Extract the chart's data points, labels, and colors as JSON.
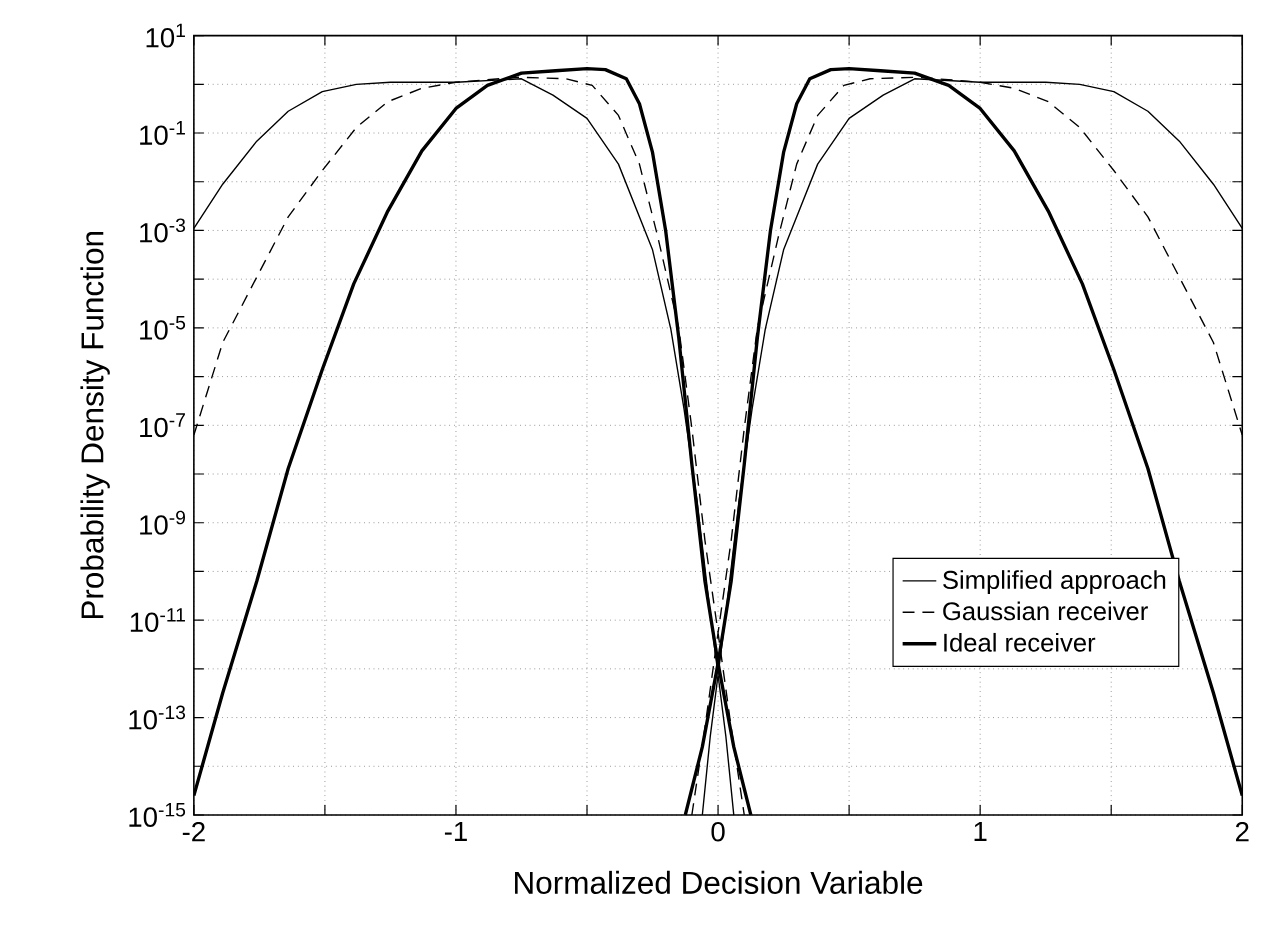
{
  "chart_data": {
    "type": "line",
    "xlabel": "Normalized Decision Variable",
    "ylabel": "Probability Density Function",
    "log": "y",
    "grid": true,
    "legend": "bottom right",
    "marker": "none",
    "xlim": [
      -2,
      2
    ],
    "xticks": [
      -2,
      {
        "value": -1.5,
        "label": null
      },
      -1,
      {
        "value": -0.5,
        "label": null
      },
      0,
      {
        "value": 0.5,
        "label": null
      },
      1,
      {
        "value": 1.5,
        "label": null
      },
      2
    ],
    "ylim": [
      1e-15,
      10
    ],
    "yticks": [
      {
        "value": 1e-15,
        "label": "10$^{-15}$"
      },
      {
        "value": 1e-14,
        "label": null
      },
      {
        "value": 1e-13,
        "label": "10$^{-13}$"
      },
      {
        "value": 1e-12,
        "label": null
      },
      {
        "value": 1e-11,
        "label": "10$^{-11}$"
      },
      {
        "value": 1e-10,
        "label": null
      },
      {
        "value": 1e-09,
        "label": "10$^{-9}$"
      },
      {
        "value": 1e-08,
        "label": null
      },
      {
        "value": 1e-07,
        "label": "10$^{-7}$"
      },
      {
        "value": 1e-06,
        "label": null
      },
      {
        "value": 1e-05,
        "label": "10$^{-5}$"
      },
      {
        "value": 0.0001,
        "label": null
      },
      {
        "value": 0.001,
        "label": "10$^{-3}$"
      },
      {
        "value": 0.01,
        "label": null
      },
      {
        "value": 0.1,
        "label": "10$^{-1}$"
      },
      {
        "value": 1,
        "label": null
      },
      {
        "value": 10,
        "label": "10$^{1}$"
      }
    ],
    "series": [
      {
        "name": "Simplified approach",
        "color": "#000000",
        "line_style": "solid",
        "x": [
          -2,
          -1.89,
          -1.76,
          -1.64,
          -1.51,
          -1.38,
          -1.25,
          -1.0,
          -0.75,
          -0.63,
          -0.5,
          -0.38,
          -0.25,
          -0.18,
          -0.13,
          -0.08,
          -0.03,
          0.03,
          0.06,
          0,
          -0.06,
          -0.03,
          0.03,
          0.08,
          0.13,
          0.18,
          0.25,
          0.38,
          0.5,
          0.63,
          0.75,
          1.0,
          1.25,
          1.38,
          1.51,
          1.64,
          1.76,
          1.89,
          2
        ],
        "values": [
          0.0011,
          0.0089,
          0.068,
          0.28,
          0.71,
          1.0,
          1.1,
          1.1,
          1.3,
          0.6,
          0.2,
          0.023,
          0.0004,
          9.3e-06,
          2.2e-07,
          2.8e-09,
          1.4e-11,
          4e-14,
          1e-15,
          null,
          1e-15,
          4e-14,
          1.4e-11,
          2.8e-09,
          2.2e-07,
          9.3e-06,
          0.0004,
          0.023,
          0.2,
          0.6,
          1.3,
          1.1,
          1.1,
          1.0,
          0.71,
          0.28,
          0.068,
          0.0089,
          0.0011
        ]
      },
      {
        "name": "Gaussian receiver",
        "color": "#000000",
        "line_style": "dashed",
        "x": [
          -2,
          -1.89,
          -1.76,
          -1.64,
          -1.51,
          -1.38,
          -1.26,
          -1.13,
          -1.0,
          -0.76,
          -0.58,
          -0.48,
          -0.38,
          -0.3,
          -0.23,
          -0.15,
          -0.1,
          -0.05,
          0,
          0.05,
          0.1,
          0,
          -0.1,
          -0.05,
          0,
          0.05,
          0.1,
          0.15,
          0.23,
          0.3,
          0.38,
          0.48,
          0.58,
          0.76,
          1.0,
          1.13,
          1.26,
          1.38,
          1.51,
          1.64,
          1.76,
          1.89,
          2
        ],
        "values": [
          6.3e-08,
          5e-06,
          0.00011,
          0.0019,
          0.017,
          0.13,
          0.44,
          0.83,
          1.1,
          1.4,
          1.3,
          0.95,
          0.23,
          0.023,
          0.00074,
          1e-05,
          8.7e-08,
          4.3e-10,
          5.5e-12,
          6.3e-14,
          1e-15,
          null,
          1e-15,
          6.3e-14,
          5.5e-12,
          4.3e-10,
          8.7e-08,
          1e-05,
          0.00074,
          0.023,
          0.23,
          0.95,
          1.3,
          1.4,
          1.1,
          0.83,
          0.44,
          0.13,
          0.017,
          0.0019,
          0.00011,
          5e-06,
          6.3e-08
        ]
      },
      {
        "name": "Ideal receiver",
        "color": "#000000",
        "line_style": "solid",
        "x": [
          -2,
          -1.89,
          -1.76,
          -1.64,
          -1.51,
          -1.39,
          -1.26,
          -1.13,
          -1.0,
          -0.88,
          -0.75,
          -0.62,
          -0.5,
          -0.43,
          -0.35,
          -0.3,
          -0.25,
          -0.2,
          -0.15,
          -0.1,
          -0.05,
          0,
          0.06,
          0.125,
          0,
          -0.125,
          -0.06,
          0,
          0.05,
          0.1,
          0.15,
          0.2,
          0.25,
          0.3,
          0.35,
          0.43,
          0.5,
          0.62,
          0.75,
          0.88,
          1.0,
          1.13,
          1.26,
          1.39,
          1.51,
          1.64,
          1.76,
          1.89,
          2
        ],
        "values": [
          2.5e-15,
          3.2e-13,
          6.3e-11,
          1.3e-08,
          1.4e-06,
          8e-05,
          0.0025,
          0.043,
          0.32,
          0.95,
          1.7,
          1.9,
          2.1,
          2.0,
          1.3,
          0.4,
          0.04,
          0.001,
          6.3e-06,
          1.6e-08,
          6.3e-11,
          1.3e-12,
          2.5e-14,
          1e-15,
          null,
          1e-15,
          2.5e-14,
          1.3e-12,
          6.3e-11,
          1.6e-08,
          6.3e-06,
          0.001,
          0.04,
          0.4,
          1.3,
          2.0,
          2.1,
          1.9,
          1.7,
          0.95,
          0.32,
          0.043,
          0.0025,
          8e-05,
          1.4e-06,
          1.3e-08,
          6.3e-11,
          3.2e-13,
          2.5e-15
        ]
      }
    ]
  }
}
